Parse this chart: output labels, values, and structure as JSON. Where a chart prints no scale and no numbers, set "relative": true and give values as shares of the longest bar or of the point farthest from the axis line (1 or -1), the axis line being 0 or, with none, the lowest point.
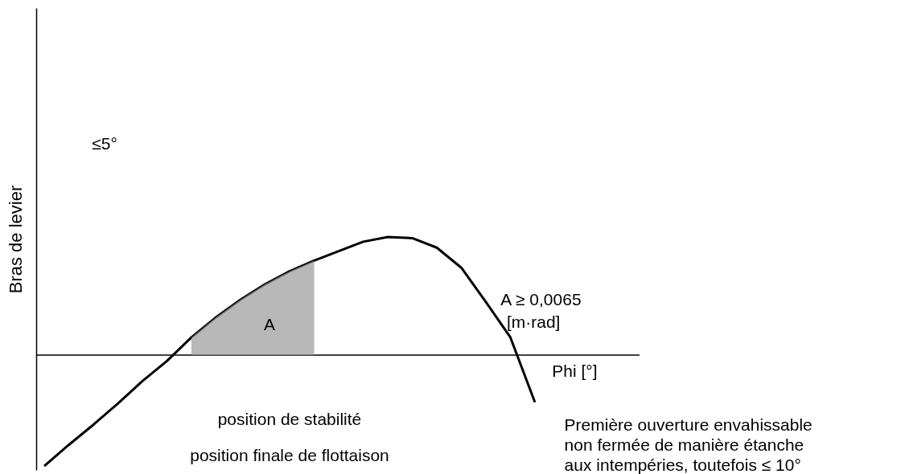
{
  "chart_data": {
    "type": "line",
    "relative": true,
    "ylabel": "Bras de levier",
    "xlabel": "Phi [°]",
    "categories": [
      null,
      null,
      null,
      null,
      null,
      null,
      null,
      null,
      null,
      null,
      null,
      null,
      null,
      null,
      null,
      null,
      null,
      null,
      null,
      null,
      null
    ],
    "series": [
      {
        "color": "#000000",
        "values": [
          -0.94,
          -0.76,
          -0.59,
          -0.41,
          -0.22,
          -0.05,
          0.15,
          0.32,
          0.47,
          0.6,
          0.71,
          0.8,
          0.88,
          0.96,
          1.0,
          0.99,
          0.91,
          0.74,
          0.45,
          0.15,
          -0.4
        ]
      },
      {
        "type": "area",
        "color": "#9a9a9a",
        "values": [
          null,
          null,
          null,
          null,
          null,
          null,
          0.15,
          0.32,
          0.47,
          0.6,
          0.71,
          0.8,
          null,
          null,
          null,
          null,
          null,
          null,
          null,
          null,
          null
        ]
      }
    ],
    "annotations": [
      "≤5°",
      "A",
      "A ≥ 0,0065",
      "[m·rad]",
      "position de stabilité",
      "position finale de flottaison",
      "Première ouverture envahissable",
      "non fermée de manière étanche",
      "aux intempéries, toutefois ≤ 10°"
    ]
  }
}
